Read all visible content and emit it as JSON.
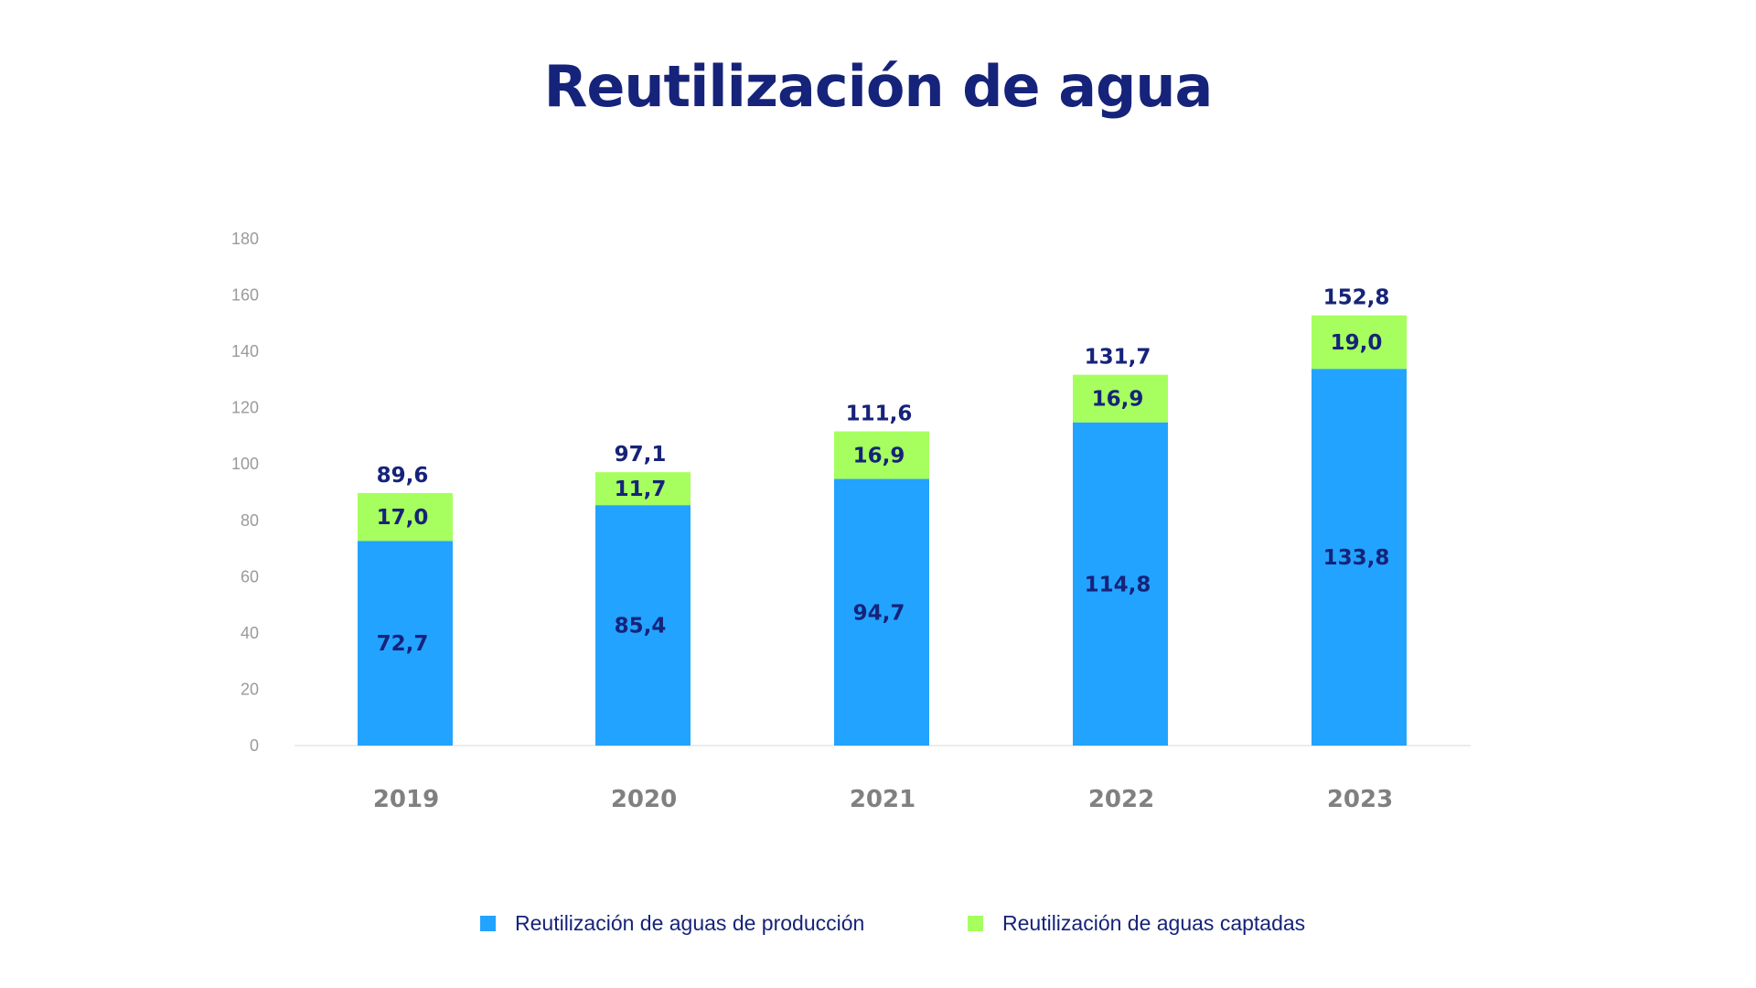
{
  "chart_data": {
    "type": "bar",
    "stacked": true,
    "title": "Reutilización de agua",
    "categories": [
      "2019",
      "2020",
      "2021",
      "2022",
      "2023"
    ],
    "series": [
      {
        "name": "Reutilización de aguas de producción",
        "color": "#22a3ff",
        "values": [
          72.7,
          85.4,
          94.7,
          114.8,
          133.8
        ],
        "labels": [
          "72,7",
          "85,4",
          "94,7",
          "114,8",
          "133,8"
        ]
      },
      {
        "name": "Reutilización de aguas captadas",
        "color": "#a6ff5e",
        "values": [
          17.0,
          11.7,
          16.9,
          16.9,
          19.0
        ],
        "labels": [
          "17,0",
          "11,7",
          "16,9",
          "16,9",
          "19,0"
        ]
      }
    ],
    "totals": [
      89.6,
      97.1,
      111.6,
      131.7,
      152.8
    ],
    "total_labels": [
      "89,6",
      "97,1",
      "111,6",
      "131,7",
      "152,8"
    ],
    "yticks": [
      "0",
      "20",
      "40",
      "60",
      "80",
      "100",
      "120",
      "140",
      "160",
      "180"
    ],
    "ylim": [
      0,
      180
    ],
    "grid": false,
    "legend_position": "bottom",
    "xlabel": "",
    "ylabel": ""
  }
}
